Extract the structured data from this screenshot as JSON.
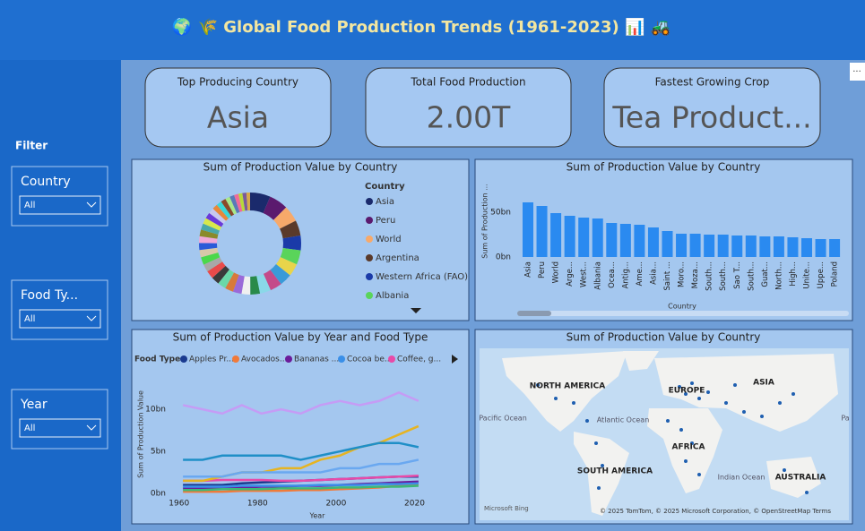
{
  "header": {
    "title": "🌍 🌾 Global Food Production Trends (1961-2023) 📊 🚜"
  },
  "filters": {
    "label": "Filter",
    "slicers": [
      {
        "label": "Country",
        "value": "All"
      },
      {
        "label": "Food Ty...",
        "value": "All"
      },
      {
        "label": "Year",
        "value": "All"
      }
    ]
  },
  "cards": [
    {
      "title": "Top Producing Country",
      "value": "Asia"
    },
    {
      "title": "Total Food Production",
      "value": "2.00T"
    },
    {
      "title": "Fastest Growing Crop",
      "value": "Tea Product..."
    }
  ],
  "chart_data": [
    {
      "type": "pie",
      "title": "Sum of Production Value by Country",
      "legend_title": "Country",
      "categories": [
        "Asia",
        "Peru",
        "World",
        "Argentina",
        "Western Africa (FAO)",
        "Albania",
        null,
        null,
        null,
        null,
        null,
        null,
        null,
        null,
        null,
        null,
        null,
        null,
        null,
        null,
        null,
        null,
        null,
        null,
        null,
        null,
        null,
        null,
        null,
        null,
        null,
        null,
        null,
        null,
        null,
        null
      ],
      "values": [
        61,
        57,
        49,
        46,
        44,
        43,
        38,
        37,
        36,
        33,
        29,
        26,
        26,
        25,
        25,
        24,
        24,
        23,
        23,
        22,
        21,
        20,
        20,
        19,
        18,
        18,
        17,
        16,
        16,
        15,
        14,
        14,
        13,
        12,
        12,
        11
      ],
      "colors": [
        "#1a2a6c",
        "#5b1a6e",
        "#f7a96a",
        "#5a3a2a",
        "#1a3aa8",
        "#5ad45a",
        "#e8d44a",
        "#3a9ad8",
        "#c44a8a",
        "#8ad8e8",
        "#2a8a4a",
        "#f0f0f0",
        "#9a6ad8",
        "#d87a3a",
        "#6ad8a8",
        "#3a3a3a",
        "#e84a4a",
        "#a8a8a8",
        "#4ad84a",
        "#d8c8a8",
        "#2a5ad8",
        "#f0a8d8",
        "#8a8a2a",
        "#4aa8a8",
        "#d8e84a",
        "#6a3ad8",
        "#c8c8f0",
        "#e8883a",
        "#3ad8d8",
        "#8a4a2a",
        "#a8e88a",
        "#5a7ab8",
        "#f06a9a",
        "#b8d83a",
        "#7a5a9a",
        "#d8a84a"
      ]
    },
    {
      "type": "bar",
      "title": "Sum of Production Value by Country",
      "y_label": "Sum of Production ...",
      "x_label": "Country",
      "color": "#2a8af0",
      "categories": [
        "Asia",
        "Peru",
        "World",
        "Arge...",
        "West...",
        "Albania",
        "Ocea...",
        "Antig...",
        "Ame...",
        "Asia...",
        "Saint ...",
        "Moro...",
        "Moza...",
        "South...",
        "South...",
        "Sao T...",
        "South...",
        "Guat...",
        "North...",
        "High...",
        "Unite...",
        "Uppe...",
        "Poland"
      ],
      "values": [
        61,
        57,
        49,
        46,
        44,
        43,
        38,
        37,
        36,
        33,
        29,
        26,
        26,
        25,
        25,
        24,
        24,
        23,
        23,
        22,
        21,
        20,
        20
      ],
      "ylim": [
        0,
        80
      ],
      "yticks": [
        {
          "value": 0,
          "label": "0bn"
        },
        {
          "value": 50,
          "label": "50bn"
        }
      ]
    },
    {
      "type": "line",
      "title": "Sum of Production Value by Year and Food Type",
      "legend_title": "Food Type",
      "y_label": "Sum of Production Value",
      "x_label": "Year",
      "x": [
        1961,
        1966,
        1971,
        1976,
        1981,
        1986,
        1991,
        1996,
        2001,
        2006,
        2011,
        2016,
        2021
      ],
      "xlim": [
        1958,
        2024
      ],
      "xticks": [
        1960,
        1980,
        2000,
        2020
      ],
      "ylim": [
        0,
        13
      ],
      "yticks": [
        {
          "value": 0,
          "label": "0bn"
        },
        {
          "value": 5,
          "label": "5bn"
        },
        {
          "value": 10,
          "label": "10bn"
        }
      ],
      "series": [
        {
          "name": "Apples Pr...",
          "color": "#1a3a8f",
          "values": [
            1,
            1,
            1,
            1.2,
            1.3,
            1.4,
            1.5,
            1.6,
            1.7,
            1.8,
            1.9,
            2,
            2
          ]
        },
        {
          "name": "Avocados...",
          "color": "#f07a3a",
          "values": [
            0.2,
            0.2,
            0.2,
            0.3,
            0.3,
            0.3,
            0.4,
            0.4,
            0.5,
            0.6,
            0.7,
            0.9,
            1.1
          ]
        },
        {
          "name": "Bananas ...",
          "color": "#6b1b9a",
          "values": [
            0.6,
            0.6,
            0.7,
            0.7,
            0.8,
            0.8,
            0.9,
            0.9,
            1,
            1.1,
            1.2,
            1.3,
            1.4
          ]
        },
        {
          "name": "Cocoa be...",
          "color": "#3a8fe8",
          "values": [
            0.8,
            0.8,
            0.8,
            0.9,
            0.9,
            0.9,
            0.9,
            1,
            1,
            1,
            1.1,
            1.1,
            1.2
          ]
        },
        {
          "name": "Coffee, g...",
          "color": "#e84aa8",
          "values": [
            1.5,
            1.5,
            1.6,
            1.6,
            1.6,
            1.5,
            1.5,
            1.6,
            1.7,
            1.8,
            1.9,
            2,
            2.1
          ]
        },
        {
          "color": "#c59cf5",
          "values": [
            10.5,
            10,
            9.5,
            10.5,
            9.5,
            10,
            9.5,
            10.5,
            11,
            10.5,
            11,
            12,
            11
          ]
        },
        {
          "color": "#e6b422",
          "values": [
            1.5,
            1.5,
            2,
            2.5,
            2.5,
            3,
            3,
            4,
            4.5,
            5.5,
            6,
            7,
            8
          ]
        },
        {
          "color": "#1f8fc7",
          "values": [
            4,
            4,
            4.5,
            4.5,
            4.5,
            4.5,
            4,
            4.5,
            5,
            5.5,
            6,
            6,
            5.5
          ]
        },
        {
          "color": "#6aa8f0",
          "values": [
            2,
            2,
            2,
            2.5,
            2.5,
            2.5,
            2.5,
            2.5,
            3,
            3,
            3.5,
            3.5,
            4
          ]
        },
        {
          "color": "#3cb878",
          "values": [
            0.4,
            0.4,
            0.5,
            0.5,
            0.5,
            0.6,
            0.6,
            0.6,
            0.7,
            0.7,
            0.8,
            0.8,
            0.9
          ]
        }
      ]
    }
  ],
  "map": {
    "title": "Sum of Production Value by Country",
    "labels": [
      "NORTH AMERICA",
      "EUROPE",
      "ASIA",
      "Pacific Ocean",
      "Atlantic Ocean",
      "AFRICA",
      "SOUTH AMERICA",
      "Indian Ocean",
      "AUSTRALIA",
      "Pa"
    ],
    "brand": "Microsoft Bing",
    "attribution": "© 2025 TomTom, © 2025 Microsoft Corporation, © OpenStreetMap  Terms"
  }
}
